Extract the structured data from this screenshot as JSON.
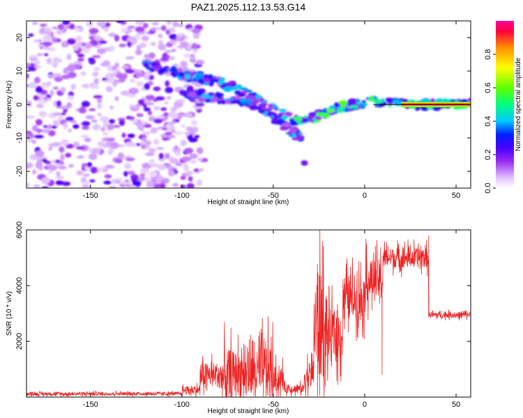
{
  "title": "PAZ1.2025.112.13.53.G14",
  "chart_data": [
    {
      "type": "heatmap",
      "xlabel": "Height of straight line (km)",
      "ylabel": "Frequency (Hz)",
      "xlim": [
        -185,
        58
      ],
      "ylim": [
        -25,
        25
      ],
      "xticks": [
        -150,
        -100,
        -50,
        0,
        50
      ],
      "yticks": [
        -20,
        -10,
        0,
        10,
        20
      ],
      "colorbar": {
        "label": "Normalized spectral amplitude",
        "range": [
          0.0,
          1.0
        ],
        "ticks": [
          0.0,
          0.2,
          0.4,
          0.6,
          0.8
        ],
        "colormap": [
          "#ffffff",
          "#e2c4ff",
          "#9a2cf0",
          "#4a00ff",
          "#0020ff",
          "#00c8ff",
          "#00ff80",
          "#60ff00",
          "#ffff00",
          "#ff9000",
          "#ff0040",
          "#ff00a0"
        ]
      },
      "features": {
        "noise_region_x": [
          -185,
          -88
        ],
        "upper_branch": {
          "x": [
            -120,
            -100,
            -80,
            -60,
            -45,
            -35
          ],
          "y": [
            12,
            9,
            7,
            2,
            -3,
            -6
          ]
        },
        "lower_branch": {
          "x": [
            -100,
            -80,
            -60,
            -45,
            -35
          ],
          "y": [
            3,
            2,
            0,
            -6,
            -10
          ]
        },
        "detached_blob": {
          "x": -33,
          "y": -17.5
        },
        "merged_track": {
          "x": [
            -40,
            -28,
            -15,
            0,
            10,
            20,
            58
          ],
          "y": [
            -5,
            -4,
            -1,
            0.5,
            1,
            0,
            0
          ]
        },
        "strong_line": {
          "x": [
            20,
            58
          ],
          "y": 0,
          "amplitude": 1.0
        }
      }
    },
    {
      "type": "line",
      "xlabel": "Height of straight line (km)",
      "ylabel": "SNR (10 * v/v)",
      "xlim": [
        -185,
        58
      ],
      "ylim": [
        0,
        6000
      ],
      "xticks": [
        -150,
        -100,
        -50,
        0,
        50
      ],
      "yticks": [
        2000,
        4000,
        6000
      ],
      "series": [
        {
          "color": "#ee2222",
          "segments": [
            {
              "x": [
                -185,
                -100
              ],
              "base": 120,
              "amp": 110
            },
            {
              "x": [
                -100,
                -90
              ],
              "base": 250,
              "amp": 300
            },
            {
              "x": [
                -90,
                -78
              ],
              "base": 800,
              "amp": 900
            },
            {
              "x": [
                -78,
                -72
              ],
              "base": 700,
              "amp": 2000
            },
            {
              "x": [
                -72,
                -58
              ],
              "base": 900,
              "amp": 1500
            },
            {
              "x": [
                -58,
                -50
              ],
              "base": 900,
              "amp": 2000
            },
            {
              "x": [
                -50,
                -44
              ],
              "base": 650,
              "amp": 900
            },
            {
              "x": [
                -44,
                -33
              ],
              "base": 300,
              "amp": 300
            },
            {
              "x": [
                -33,
                -28
              ],
              "base": 800,
              "amp": 1000
            },
            {
              "x": [
                -28,
                -22
              ],
              "base": 2500,
              "amp": 3800
            },
            {
              "x": [
                -22,
                -12
              ],
              "base": 2200,
              "amp": 1900
            },
            {
              "x": [
                -12,
                0
              ],
              "base": 3600,
              "amp": 1600
            },
            {
              "x": [
                0,
                10
              ],
              "base": 4200,
              "amp": 1500
            },
            {
              "x": [
                10,
                35
              ],
              "base": 5000,
              "amp": 700
            },
            {
              "x": [
                35,
                58
              ],
              "base": 2950,
              "amp": 200
            }
          ],
          "spikes": [
            {
              "x": -24.5,
              "y": 6000
            },
            {
              "x": -23.0,
              "y": 5600
            },
            {
              "x": 1.0,
              "y": 5500
            },
            {
              "x": 9.5,
              "y": 800
            },
            {
              "x": 15.0,
              "y": 5200
            },
            {
              "x": 35.0,
              "y": 5800
            }
          ]
        }
      ]
    }
  ]
}
